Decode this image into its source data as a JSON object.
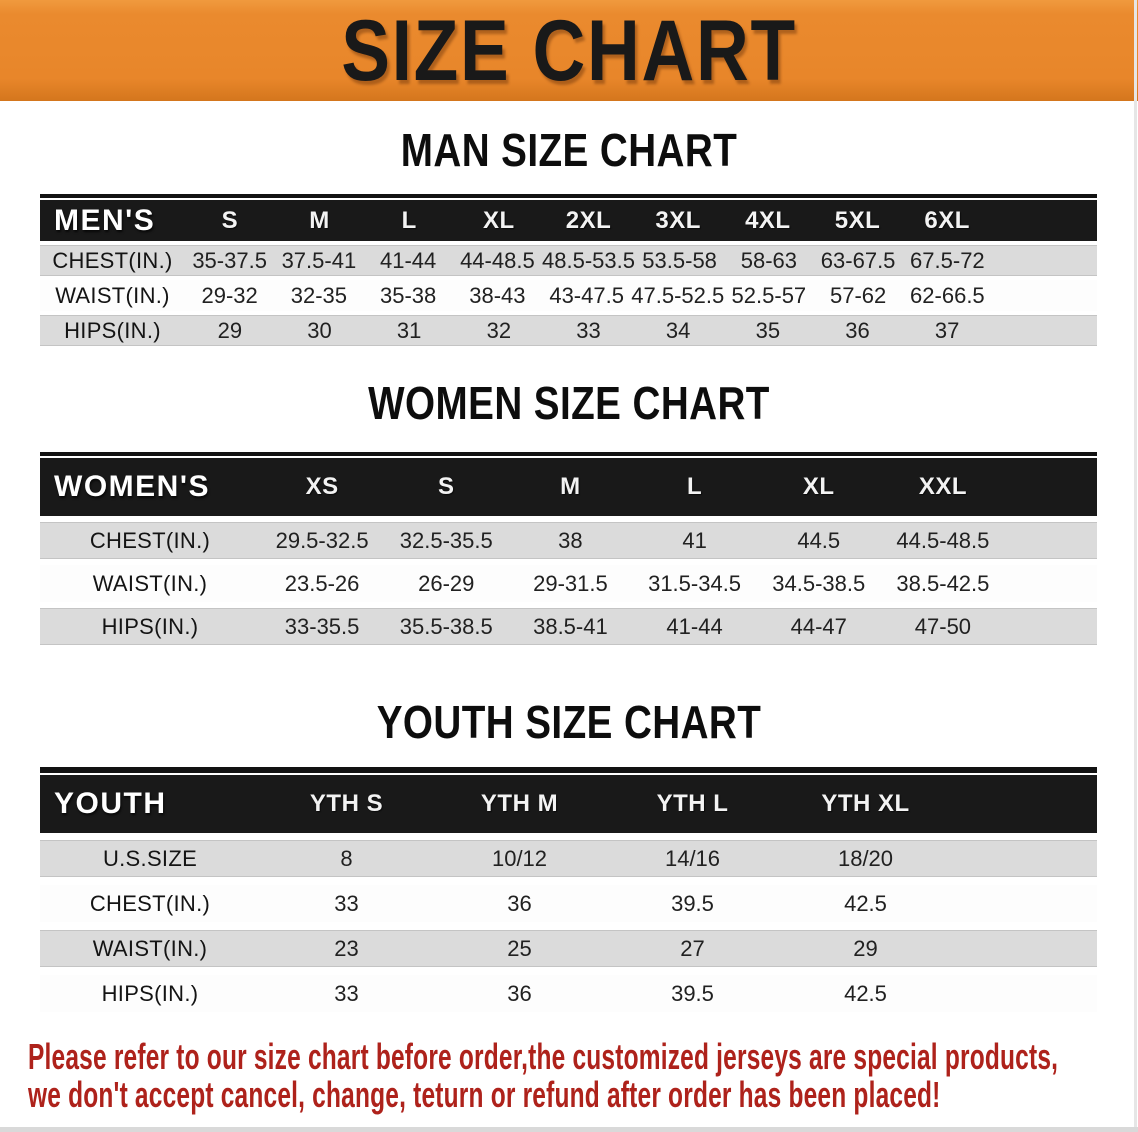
{
  "banner": {
    "title": "SIZE CHART",
    "bg_color": "#E8862C",
    "text_color": "#191919"
  },
  "sections": [
    {
      "heading": "MAN SIZE CHART",
      "table": {
        "header_label": "MEN'S",
        "columns": [
          "S",
          "M",
          "L",
          "XL",
          "2XL",
          "3XL",
          "4XL",
          "5XL",
          "6XL"
        ],
        "rows": [
          {
            "label": "CHEST(IN.)",
            "values": [
              "35-37.5",
              "37.5-41",
              "41-44",
              "44-48.5",
              "48.5-53.5",
              "53.5-58",
              "58-63",
              "63-67.5",
              "67.5-72"
            ]
          },
          {
            "label": "WAIST(IN.)",
            "values": [
              "29-32",
              "32-35",
              "35-38",
              "38-43",
              "43-47.5",
              "47.5-52.5",
              "52.5-57",
              "57-62",
              "62-66.5"
            ]
          },
          {
            "label": "HIPS(IN.)",
            "values": [
              "29",
              "30",
              "31",
              "32",
              "33",
              "34",
              "35",
              "36",
              "37"
            ]
          }
        ]
      }
    },
    {
      "heading": "WOMEN SIZE CHART",
      "table": {
        "header_label": "WOMEN'S",
        "columns": [
          "XS",
          "S",
          "M",
          "L",
          "XL",
          "XXL"
        ],
        "rows": [
          {
            "label": "CHEST(IN.)",
            "values": [
              "29.5-32.5",
              "32.5-35.5",
              "38",
              "41",
              "44.5",
              "44.5-48.5"
            ]
          },
          {
            "label": "WAIST(IN.)",
            "values": [
              "23.5-26",
              "26-29",
              "29-31.5",
              "31.5-34.5",
              "34.5-38.5",
              "38.5-42.5"
            ]
          },
          {
            "label": "HIPS(IN.)",
            "values": [
              "33-35.5",
              "35.5-38.5",
              "38.5-41",
              "41-44",
              "44-47",
              "47-50"
            ]
          }
        ]
      }
    },
    {
      "heading": "YOUTH SIZE CHART",
      "table": {
        "header_label": "YOUTH",
        "columns": [
          "YTH S",
          "YTH M",
          "YTH L",
          "YTH XL"
        ],
        "rows": [
          {
            "label": "U.S.SIZE",
            "values": [
              "8",
              "10/12",
              "14/16",
              "18/20"
            ]
          },
          {
            "label": "CHEST(IN.)",
            "values": [
              "33",
              "36",
              "39.5",
              "42.5"
            ]
          },
          {
            "label": "WAIST(IN.)",
            "values": [
              "23",
              "25",
              "27",
              "29"
            ]
          },
          {
            "label": "HIPS(IN.)",
            "values": [
              "33",
              "36",
              "39.5",
              "42.5"
            ]
          }
        ]
      }
    }
  ],
  "disclaimer": {
    "lines": [
      "Please refer to our size chart before order,the customized jerseys are special products,",
      "we don't accept cancel, change, teturn or refund after order has been placed!"
    ],
    "text_color": "#AE221B"
  },
  "colors": {
    "banner_orange": "#E8862C",
    "table_header_black": "#191919",
    "row_shaded_gray": "#DBDBDB",
    "row_plain_white": "#FDFDFD",
    "disclaimer_red": "#AE221B"
  },
  "chart_data": [
    {
      "type": "table",
      "title": "MAN SIZE CHART",
      "header": [
        "MEN'S",
        "S",
        "M",
        "L",
        "XL",
        "2XL",
        "3XL",
        "4XL",
        "5XL",
        "6XL"
      ],
      "rows": [
        [
          "CHEST(IN.)",
          "35-37.5",
          "37.5-41",
          "41-44",
          "44-48.5",
          "48.5-53.5",
          "53.5-58",
          "58-63",
          "63-67.5",
          "67.5-72"
        ],
        [
          "WAIST(IN.)",
          "29-32",
          "32-35",
          "35-38",
          "38-43",
          "43-47.5",
          "47.5-52.5",
          "52.5-57",
          "57-62",
          "62-66.5"
        ],
        [
          "HIPS(IN.)",
          "29",
          "30",
          "31",
          "32",
          "33",
          "34",
          "35",
          "36",
          "37"
        ]
      ]
    },
    {
      "type": "table",
      "title": "WOMEN SIZE CHART",
      "header": [
        "WOMEN'S",
        "XS",
        "S",
        "M",
        "L",
        "XL",
        "XXL"
      ],
      "rows": [
        [
          "CHEST(IN.)",
          "29.5-32.5",
          "32.5-35.5",
          "38",
          "41",
          "44.5",
          "44.5-48.5"
        ],
        [
          "WAIST(IN.)",
          "23.5-26",
          "26-29",
          "29-31.5",
          "31.5-34.5",
          "34.5-38.5",
          "38.5-42.5"
        ],
        [
          "HIPS(IN.)",
          "33-35.5",
          "35.5-38.5",
          "38.5-41",
          "41-44",
          "44-47",
          "47-50"
        ]
      ]
    },
    {
      "type": "table",
      "title": "YOUTH SIZE CHART",
      "header": [
        "YOUTH",
        "YTH S",
        "YTH M",
        "YTH L",
        "YTH XL"
      ],
      "rows": [
        [
          "U.S.SIZE",
          "8",
          "10/12",
          "14/16",
          "18/20"
        ],
        [
          "CHEST(IN.)",
          "33",
          "36",
          "39.5",
          "42.5"
        ],
        [
          "WAIST(IN.)",
          "23",
          "25",
          "27",
          "29"
        ],
        [
          "HIPS(IN.)",
          "33",
          "36",
          "39.5",
          "42.5"
        ]
      ]
    }
  ]
}
